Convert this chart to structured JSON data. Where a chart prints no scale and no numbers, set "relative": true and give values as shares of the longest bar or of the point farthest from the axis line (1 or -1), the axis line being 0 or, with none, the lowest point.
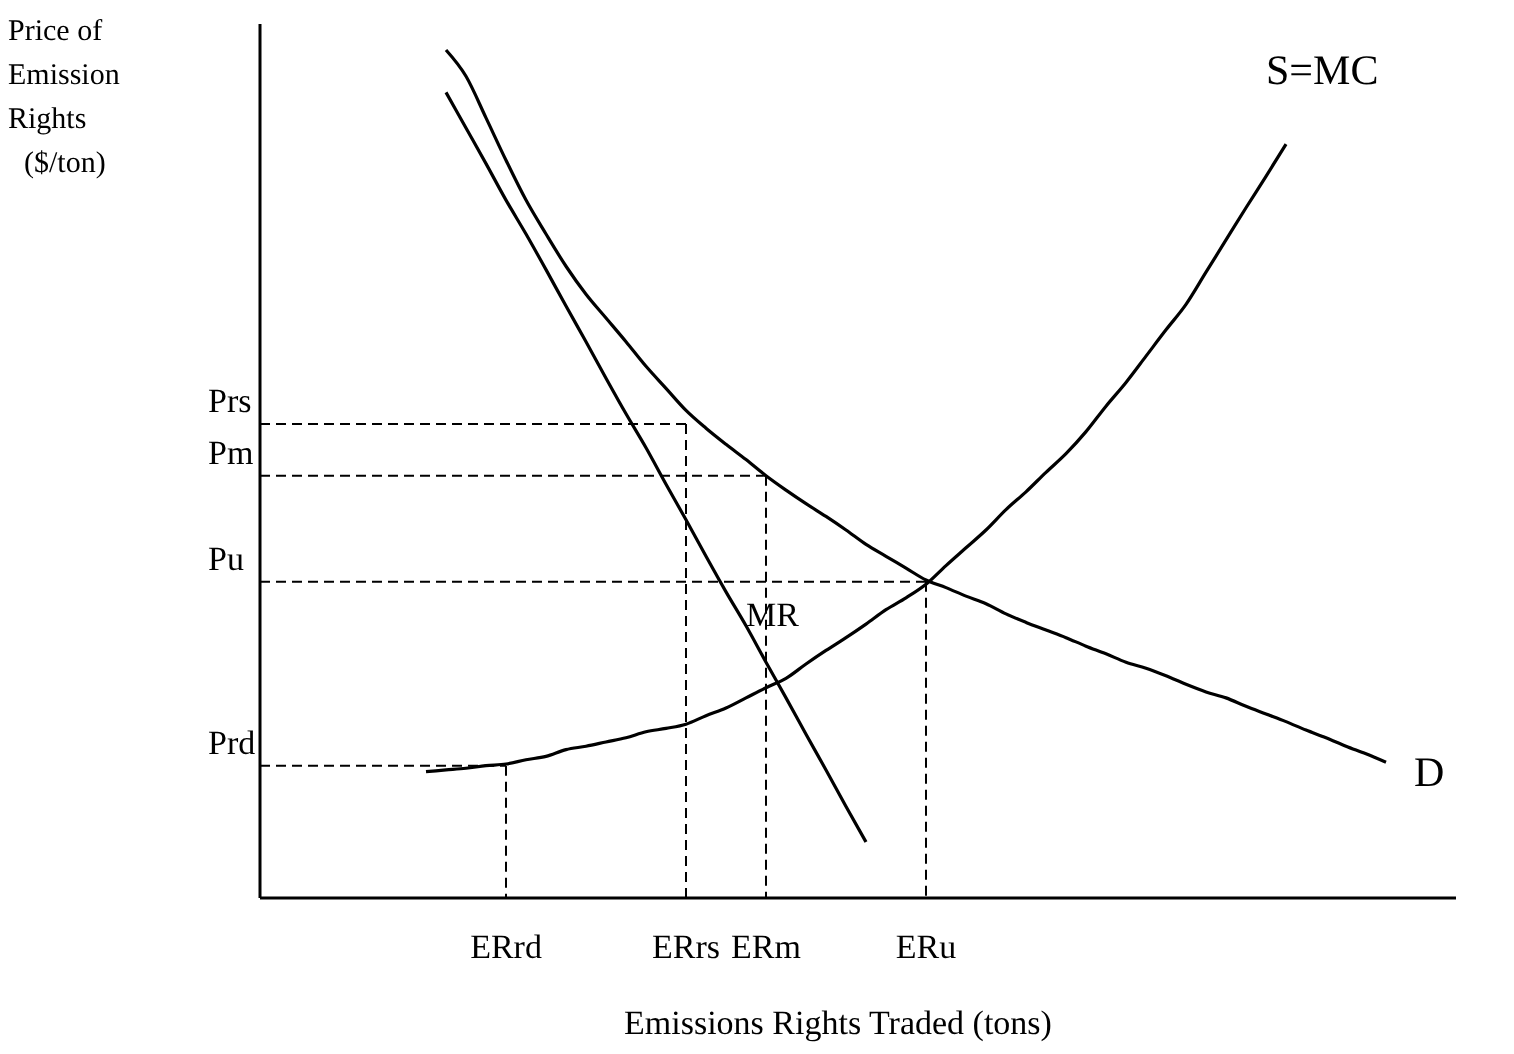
{
  "chart_data": {
    "type": "line",
    "relative": true,
    "xlabel": "Emissions Rights Traded (tons)",
    "ylabel": "Price of Emission Rights ($/ton)",
    "categories": [
      null,
      null,
      null,
      null,
      null,
      null,
      null,
      null,
      null,
      null,
      null,
      null,
      "ERrd",
      null,
      null,
      null,
      null,
      null,
      null,
      null,
      null,
      "ERrs",
      null,
      null,
      null,
      "ERm",
      null,
      null,
      null,
      null,
      null,
      null,
      null,
      "ERu",
      null,
      null,
      null,
      null,
      null,
      null,
      null,
      null,
      null,
      null,
      null,
      null,
      null,
      null,
      null,
      null,
      null,
      null,
      null,
      null,
      null,
      null,
      null,
      null,
      null,
      null
    ],
    "series": [
      {
        "name": "D",
        "color": "#000000",
        "values": [
          null,
          null,
          null,
          null,
          null,
          null,
          null,
          null,
          null,
          1.0,
          0.969,
          0.92,
          0.87,
          0.823,
          0.783,
          0.745,
          0.712,
          0.684,
          0.656,
          0.627,
          0.601,
          0.575,
          0.554,
          0.535,
          0.517,
          0.498,
          0.481,
          0.465,
          0.45,
          0.434,
          0.417,
          0.403,
          0.389,
          0.375,
          0.366,
          0.356,
          0.347,
          0.335,
          0.325,
          0.316,
          0.307,
          0.297,
          0.288,
          0.278,
          0.271,
          0.262,
          0.252,
          0.243,
          0.236,
          0.226,
          0.217,
          0.208,
          0.198,
          0.189,
          0.179,
          0.17,
          0.16,
          null,
          null,
          null
        ]
      },
      {
        "name": "MR",
        "color": "#000000",
        "values": [
          null,
          null,
          null,
          null,
          null,
          null,
          null,
          null,
          null,
          0.95,
          0.908,
          0.866,
          0.823,
          0.783,
          0.741,
          0.698,
          0.656,
          0.613,
          0.571,
          0.531,
          0.488,
          0.446,
          0.403,
          0.361,
          0.321,
          0.278,
          0.236,
          0.193,
          0.151,
          0.108,
          0.066,
          null,
          null,
          null,
          null,
          null,
          null,
          null,
          null,
          null,
          null,
          null,
          null,
          null,
          null,
          null,
          null,
          null,
          null,
          null,
          null,
          null,
          null,
          null,
          null,
          null,
          null,
          null,
          null,
          null
        ]
      },
      {
        "name": "S=MC",
        "color": "#000000",
        "values": [
          null,
          null,
          null,
          null,
          null,
          null,
          null,
          null,
          0.149,
          0.151,
          0.153,
          0.156,
          0.158,
          0.163,
          0.167,
          0.175,
          0.179,
          0.184,
          0.189,
          0.196,
          0.2,
          0.205,
          0.215,
          0.224,
          0.236,
          0.248,
          0.259,
          0.276,
          0.292,
          0.307,
          0.323,
          0.34,
          0.354,
          0.37,
          0.392,
          0.413,
          0.434,
          0.458,
          0.479,
          0.502,
          0.524,
          0.55,
          0.58,
          0.608,
          0.639,
          0.67,
          0.7,
          0.738,
          0.776,
          0.814,
          0.851,
          0.889,
          null,
          null,
          null,
          null,
          null,
          null,
          null,
          null
        ]
      }
    ],
    "ref_lines": [
      {
        "axis": "y",
        "value": 0.559,
        "label": "Prs",
        "line_style": "dashed"
      },
      {
        "axis": "y",
        "value": 0.498,
        "label": "Pm",
        "line_style": "dashed"
      },
      {
        "axis": "y",
        "value": 0.373,
        "label": "Pu",
        "line_style": "dashed"
      },
      {
        "axis": "y",
        "value": 0.156,
        "label": "Prd",
        "line_style": "dashed"
      },
      {
        "axis": "x",
        "value": "ERrs",
        "line_style": "dashed"
      },
      {
        "axis": "x",
        "value": "ERm",
        "line_style": "dashed"
      },
      {
        "axis": "x",
        "value": "ERu",
        "line_style": "dashed"
      },
      {
        "axis": "x",
        "value": "ERrd",
        "line_style": "dashed"
      }
    ],
    "legend": false,
    "grid": false
  }
}
